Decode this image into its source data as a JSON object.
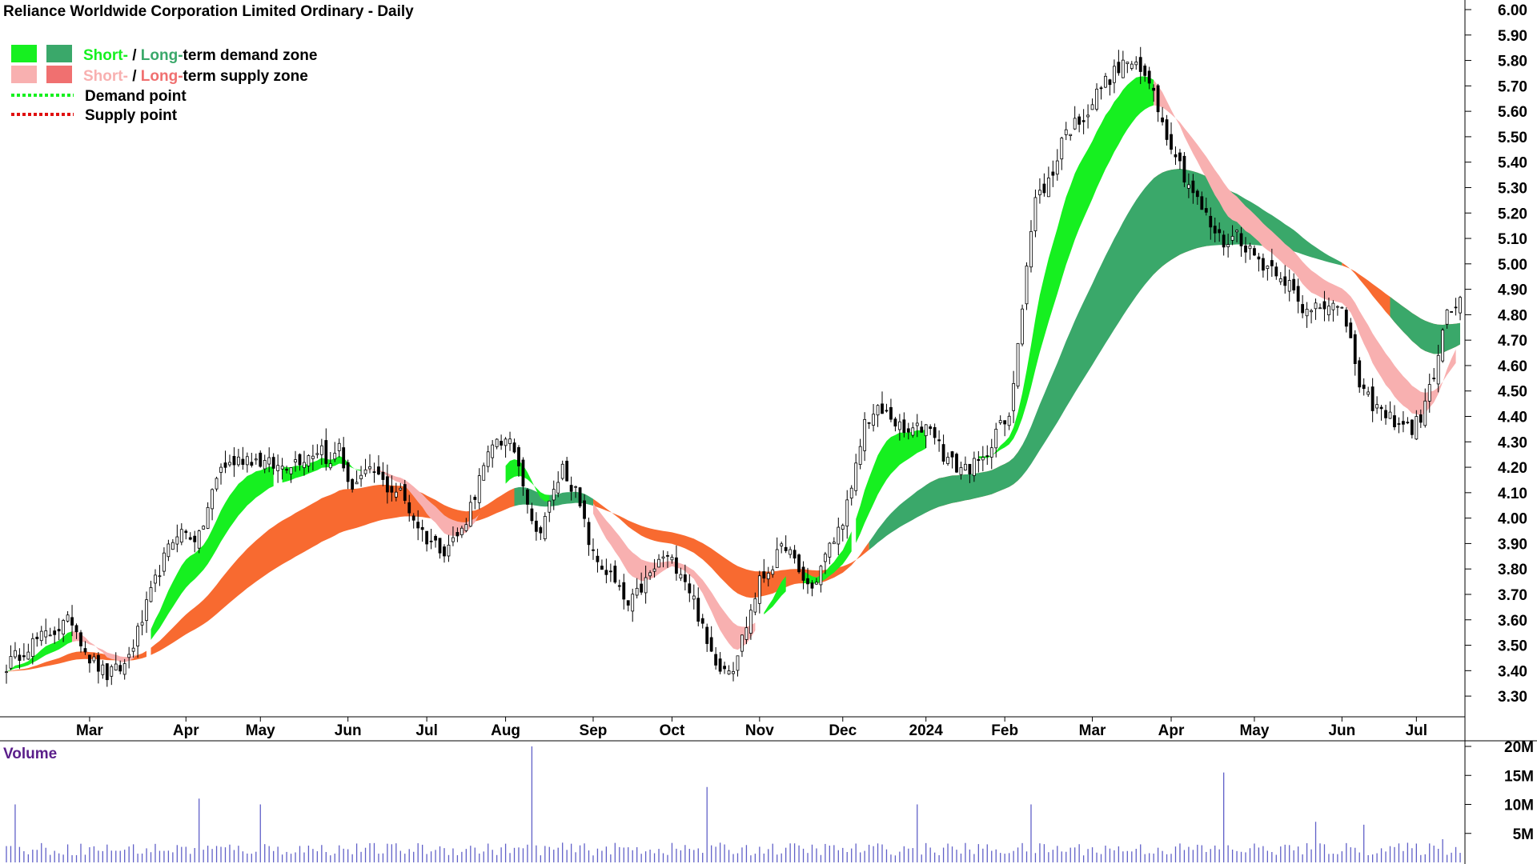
{
  "title": "Reliance Worldwide Corporation Limited Ordinary - Daily",
  "legend": {
    "demand_zone": {
      "short": "Short-",
      "sep": " / ",
      "long": "Long-",
      "rest": "term demand zone"
    },
    "supply_zone": {
      "short": "Short-",
      "sep": " / ",
      "long": "Long-",
      "rest": "term supply zone"
    },
    "demand_point": "Demand point",
    "supply_point": "Supply point"
  },
  "volume_label": "Volume",
  "colors": {
    "short_demand": "#16f020",
    "long_demand": "#3aa86a",
    "short_supply": "#f8b0b0",
    "long_supply": "#f86a30",
    "long_supply_legend": "#f07070",
    "demand_point": "#16f020",
    "supply_point": "#e01010",
    "volume_bar": "#6060c8",
    "volume_label": "#5a1e8a",
    "candle": "#000000"
  },
  "chart_data": {
    "type": "candlestick",
    "title": "Reliance Worldwide Corporation Limited Ordinary - Daily",
    "x_axis": {
      "tick_labels": [
        "Mar",
        "Apr",
        "May",
        "Jun",
        "Jul",
        "Aug",
        "Sep",
        "Oct",
        "Nov",
        "Dec",
        "2024",
        "Feb",
        "Mar",
        "Apr",
        "May",
        "Jun",
        "Jul"
      ],
      "tick_day_index": [
        19,
        41,
        58,
        78,
        96,
        114,
        134,
        152,
        172,
        191,
        210,
        228,
        248,
        266,
        285,
        305,
        322
      ]
    },
    "y_axis": {
      "position": "right",
      "ylim": [
        3.25,
        6.0
      ],
      "tick_labels": [
        "6.00",
        "5.90",
        "5.80",
        "5.70",
        "5.60",
        "5.50",
        "5.40",
        "5.30",
        "5.20",
        "5.10",
        "5.00",
        "4.90",
        "4.80",
        "4.70",
        "4.60",
        "4.50",
        "4.40",
        "4.30",
        "4.20",
        "4.10",
        "4.00",
        "3.90",
        "3.80",
        "3.70",
        "3.60",
        "3.50",
        "3.40",
        "3.30"
      ]
    },
    "price_key_points": [
      [
        0,
        3.42
      ],
      [
        5,
        3.5
      ],
      [
        10,
        3.55
      ],
      [
        15,
        3.6
      ],
      [
        19,
        3.45
      ],
      [
        23,
        3.38
      ],
      [
        27,
        3.42
      ],
      [
        30,
        3.55
      ],
      [
        35,
        3.8
      ],
      [
        39,
        3.95
      ],
      [
        44,
        3.92
      ],
      [
        47,
        4.1
      ],
      [
        49,
        4.2
      ],
      [
        55,
        4.24
      ],
      [
        62,
        4.2
      ],
      [
        68,
        4.24
      ],
      [
        72,
        4.28
      ],
      [
        74,
        4.2
      ],
      [
        76,
        4.3
      ],
      [
        78,
        4.12
      ],
      [
        81,
        4.16
      ],
      [
        84,
        4.18
      ],
      [
        87,
        4.12
      ],
      [
        90,
        4.1
      ],
      [
        93,
        4.0
      ],
      [
        96,
        3.92
      ],
      [
        100,
        3.88
      ],
      [
        104,
        3.95
      ],
      [
        108,
        4.15
      ],
      [
        112,
        4.32
      ],
      [
        116,
        4.27
      ],
      [
        118,
        4.15
      ],
      [
        121,
        3.93
      ],
      [
        124,
        4.05
      ],
      [
        127,
        4.2
      ],
      [
        130,
        4.1
      ],
      [
        134,
        3.85
      ],
      [
        138,
        3.77
      ],
      [
        142,
        3.65
      ],
      [
        146,
        3.75
      ],
      [
        150,
        3.85
      ],
      [
        154,
        3.8
      ],
      [
        157,
        3.68
      ],
      [
        160,
        3.5
      ],
      [
        163,
        3.42
      ],
      [
        166,
        3.42
      ],
      [
        169,
        3.58
      ],
      [
        172,
        3.75
      ],
      [
        175,
        3.82
      ],
      [
        178,
        3.9
      ],
      [
        181,
        3.78
      ],
      [
        184,
        3.72
      ],
      [
        187,
        3.85
      ],
      [
        190,
        3.95
      ],
      [
        193,
        4.1
      ],
      [
        196,
        4.38
      ],
      [
        199,
        4.42
      ],
      [
        202,
        4.4
      ],
      [
        205,
        4.33
      ],
      [
        208,
        4.35
      ],
      [
        211,
        4.37
      ],
      [
        214,
        4.25
      ],
      [
        217,
        4.2
      ],
      [
        220,
        4.2
      ],
      [
        223,
        4.22
      ],
      [
        226,
        4.35
      ],
      [
        229,
        4.38
      ],
      [
        231,
        4.7
      ],
      [
        233,
        5.0
      ],
      [
        235,
        5.25
      ],
      [
        237,
        5.3
      ],
      [
        239,
        5.35
      ],
      [
        241,
        5.5
      ],
      [
        244,
        5.55
      ],
      [
        247,
        5.6
      ],
      [
        250,
        5.7
      ],
      [
        253,
        5.75
      ],
      [
        256,
        5.8
      ],
      [
        259,
        5.75
      ],
      [
        262,
        5.7
      ],
      [
        264,
        5.55
      ],
      [
        266,
        5.48
      ],
      [
        269,
        5.35
      ],
      [
        272,
        5.25
      ],
      [
        275,
        5.15
      ],
      [
        278,
        5.08
      ],
      [
        281,
        5.12
      ],
      [
        284,
        5.05
      ],
      [
        287,
        5.0
      ],
      [
        290,
        4.98
      ],
      [
        293,
        4.92
      ],
      [
        296,
        4.8
      ],
      [
        299,
        4.85
      ],
      [
        302,
        4.85
      ],
      [
        305,
        4.8
      ],
      [
        307,
        4.72
      ],
      [
        309,
        4.5
      ],
      [
        312,
        4.45
      ],
      [
        315,
        4.4
      ],
      [
        318,
        4.38
      ],
      [
        321,
        4.35
      ],
      [
        323,
        4.4
      ],
      [
        325,
        4.5
      ],
      [
        327,
        4.65
      ],
      [
        329,
        4.8
      ],
      [
        332,
        4.85
      ]
    ],
    "short_demand_zone_segments": [
      [
        0,
        15
      ],
      [
        33,
        61
      ],
      [
        63,
        81
      ],
      [
        114,
        124
      ],
      [
        173,
        178
      ],
      [
        182,
        193
      ],
      [
        194,
        210
      ],
      [
        222,
        262
      ]
    ],
    "long_demand_zone_segments": [
      [
        116,
        134
      ],
      [
        197,
        305
      ],
      [
        316,
        332
      ]
    ],
    "short_supply_zone_segments": [
      [
        0,
        8
      ],
      [
        15,
        30
      ],
      [
        82,
        108
      ],
      [
        134,
        171
      ],
      [
        262,
        331
      ]
    ],
    "long_supply_zone_segments": [
      [
        0,
        32
      ],
      [
        33,
        116
      ],
      [
        134,
        197
      ],
      [
        210,
        232
      ],
      [
        262,
        275
      ],
      [
        305,
        332
      ]
    ],
    "volume": {
      "label": "Volume",
      "y_axis_tick_labels": [
        "20M",
        "15M",
        "10M",
        "5M"
      ],
      "ylim": [
        0,
        20
      ],
      "unit": "M",
      "spikes": [
        [
          2,
          10
        ],
        [
          44,
          11
        ],
        [
          58,
          10
        ],
        [
          120,
          20
        ],
        [
          160,
          13
        ],
        [
          208,
          10
        ],
        [
          234,
          10
        ],
        [
          278,
          15.5
        ],
        [
          299,
          7
        ],
        [
          310,
          6.5
        ],
        [
          328,
          4
        ]
      ]
    }
  }
}
